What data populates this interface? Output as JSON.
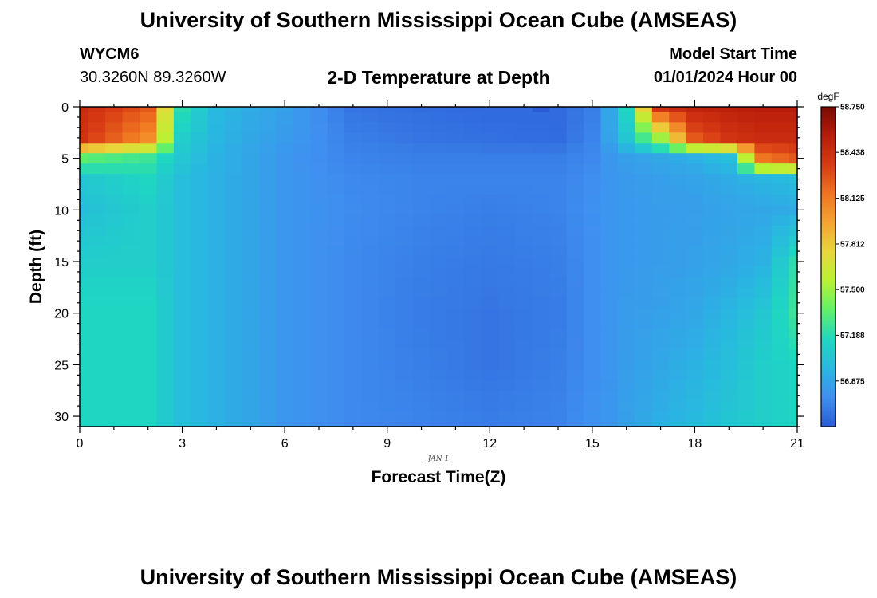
{
  "header": {
    "title": "University of Southern Mississippi Ocean Cube (AMSEAS)",
    "station_id": "WYCM6",
    "coordinates": "30.3260N  89.3260W",
    "subtitle": "2-D Temperature at Depth",
    "model_start_label": "Model Start Time",
    "model_start_value": "01/01/2024 Hour 00"
  },
  "footer": {
    "title": "University of Southern Mississippi Ocean Cube (AMSEAS)"
  },
  "chart_data": {
    "type": "heatmap",
    "title": "2-D Temperature at Depth",
    "xlabel": "Forecast Time(Z)",
    "ylabel": "Depth (ft)",
    "x_ticks": [
      "0",
      "3",
      "6",
      "9",
      "12",
      "15",
      "18",
      "21"
    ],
    "y_ticks": [
      "0",
      "5",
      "10",
      "15",
      "20",
      "25",
      "30"
    ],
    "xlim": [
      0,
      21
    ],
    "ylim": [
      0,
      31
    ],
    "date_label": "JAN 1",
    "colorbar": {
      "unit": "degF",
      "min": 56.563,
      "max": 58.75,
      "tick_labels": [
        "58.750",
        "58.438",
        "58.125",
        "57.812",
        "57.500",
        "57.188",
        "56.875"
      ],
      "tick_values": [
        58.75,
        58.438,
        58.125,
        57.812,
        57.5,
        57.188,
        56.875
      ],
      "stops": [
        "#2b5cd6",
        "#3f8ff0",
        "#28b8e0",
        "#1ed8c0",
        "#5ff06a",
        "#b8f232",
        "#e8d83a",
        "#f4a432",
        "#f07420",
        "#d83a14",
        "#b81c0a",
        "#7a0a04"
      ]
    },
    "grid": {
      "time_points": [
        0,
        0.5,
        1,
        1.5,
        2,
        2.5,
        3,
        3.5,
        4,
        4.5,
        5,
        5.5,
        6,
        6.5,
        7,
        7.5,
        8,
        8.5,
        9,
        9.5,
        10,
        10.5,
        11,
        11.5,
        12,
        12.5,
        13,
        13.5,
        14,
        14.5,
        15,
        15.5,
        16,
        16.5,
        17,
        17.5,
        18,
        18.5,
        19,
        19.5,
        20,
        20.5,
        21
      ],
      "depth_points": [
        0,
        1,
        2,
        3,
        4,
        5,
        6,
        7,
        8,
        9,
        10,
        11,
        12,
        13,
        14,
        15,
        16,
        17,
        18,
        19,
        20,
        21,
        22,
        23,
        24,
        25,
        26,
        27,
        28,
        29,
        30,
        31
      ],
      "profile_times": [
        0,
        2,
        3,
        4,
        5,
        6,
        8,
        10,
        12,
        14,
        15,
        15.5,
        16,
        17,
        18,
        19,
        20,
        21
      ],
      "profile_depths": [
        0,
        3,
        5,
        7,
        10,
        15,
        20,
        25,
        31
      ],
      "profiles": [
        [
          58.45,
          58.4,
          57.35,
          57.05,
          57.0,
          57.1,
          57.15,
          57.15,
          57.15
        ],
        [
          58.25,
          58.05,
          57.25,
          57.15,
          57.1,
          57.1,
          57.15,
          57.15,
          57.15
        ],
        [
          57.2,
          57.1,
          57.05,
          57.0,
          57.0,
          57.0,
          57.0,
          57.0,
          57.0
        ],
        [
          56.97,
          56.95,
          56.93,
          56.92,
          56.92,
          56.92,
          56.92,
          56.92,
          56.92
        ],
        [
          56.9,
          56.88,
          56.87,
          56.87,
          56.87,
          56.87,
          56.87,
          56.87,
          56.87
        ],
        [
          56.85,
          56.82,
          56.8,
          56.8,
          56.8,
          56.8,
          56.8,
          56.8,
          56.8
        ],
        [
          56.66,
          56.7,
          56.72,
          56.74,
          56.75,
          56.74,
          56.74,
          56.74,
          56.74
        ],
        [
          56.63,
          56.66,
          56.7,
          56.72,
          56.72,
          56.7,
          56.69,
          56.7,
          56.72
        ],
        [
          56.62,
          56.64,
          56.7,
          56.72,
          56.7,
          56.68,
          56.66,
          56.66,
          56.7
        ],
        [
          56.62,
          56.63,
          56.7,
          56.72,
          56.72,
          56.7,
          56.69,
          56.7,
          56.72
        ],
        [
          56.7,
          56.72,
          56.74,
          56.76,
          56.77,
          56.76,
          56.76,
          56.76,
          56.78
        ],
        [
          56.88,
          56.86,
          56.8,
          56.79,
          56.79,
          56.79,
          56.79,
          56.79,
          56.8
        ],
        [
          57.15,
          57.05,
          56.84,
          56.81,
          56.81,
          56.81,
          56.82,
          56.83,
          56.85
        ],
        [
          58.4,
          57.5,
          56.88,
          56.84,
          56.83,
          56.83,
          56.85,
          56.88,
          56.92
        ],
        [
          58.5,
          58.25,
          56.92,
          56.86,
          56.84,
          56.85,
          56.88,
          56.93,
          56.98
        ],
        [
          58.52,
          58.4,
          57.0,
          56.9,
          56.86,
          56.88,
          56.95,
          57.0,
          57.05
        ],
        [
          58.55,
          58.45,
          58.15,
          56.95,
          56.88,
          56.93,
          57.05,
          57.1,
          57.1
        ],
        [
          58.55,
          58.45,
          58.25,
          57.0,
          56.9,
          57.2,
          57.25,
          57.15,
          57.15
        ]
      ],
      "min_marker": {
        "time": 13.5,
        "depth": 0,
        "value": 56.5
      }
    }
  }
}
